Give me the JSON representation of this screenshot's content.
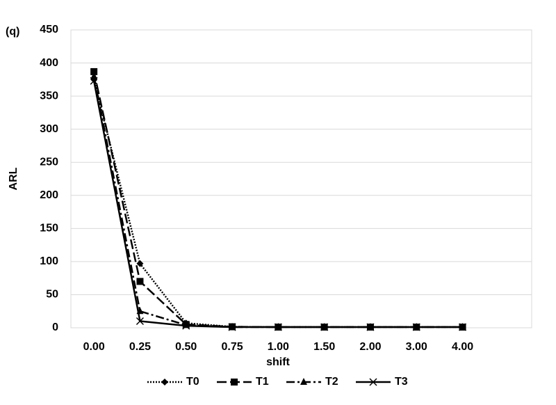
{
  "chart_data": {
    "type": "line",
    "title": "(q)",
    "x_label": "shift",
    "y_label": "ARL",
    "categories": [
      "0.00",
      "0.25",
      "0.50",
      "0.75",
      "1.00",
      "1.50",
      "2.00",
      "3.00",
      "4.00"
    ],
    "series": [
      {
        "name": "T0",
        "color": "#000000",
        "dash": "dotted",
        "marker": "diamond",
        "values": [
          375,
          97,
          7,
          1.5,
          1,
          1,
          1,
          1,
          1
        ]
      },
      {
        "name": "T1",
        "color": "#000000",
        "dash": "long-dash",
        "marker": "square",
        "values": [
          387,
          70,
          5,
          1.5,
          1,
          1,
          1,
          1,
          1
        ]
      },
      {
        "name": "T2",
        "color": "#000000",
        "dash": "dash-dot",
        "marker": "triangle",
        "values": [
          380,
          25,
          4,
          1,
          1,
          1,
          1,
          1,
          1
        ]
      },
      {
        "name": "T3",
        "color": "#000000",
        "dash": "solid",
        "marker": "x",
        "values": [
          373,
          10,
          3,
          1,
          1,
          1,
          1,
          1,
          1
        ]
      }
    ],
    "ylim": [
      0,
      450
    ],
    "yticks": [
      0,
      50,
      100,
      150,
      200,
      250,
      300,
      350,
      400,
      450
    ],
    "grid": true,
    "legend": "bottom"
  }
}
